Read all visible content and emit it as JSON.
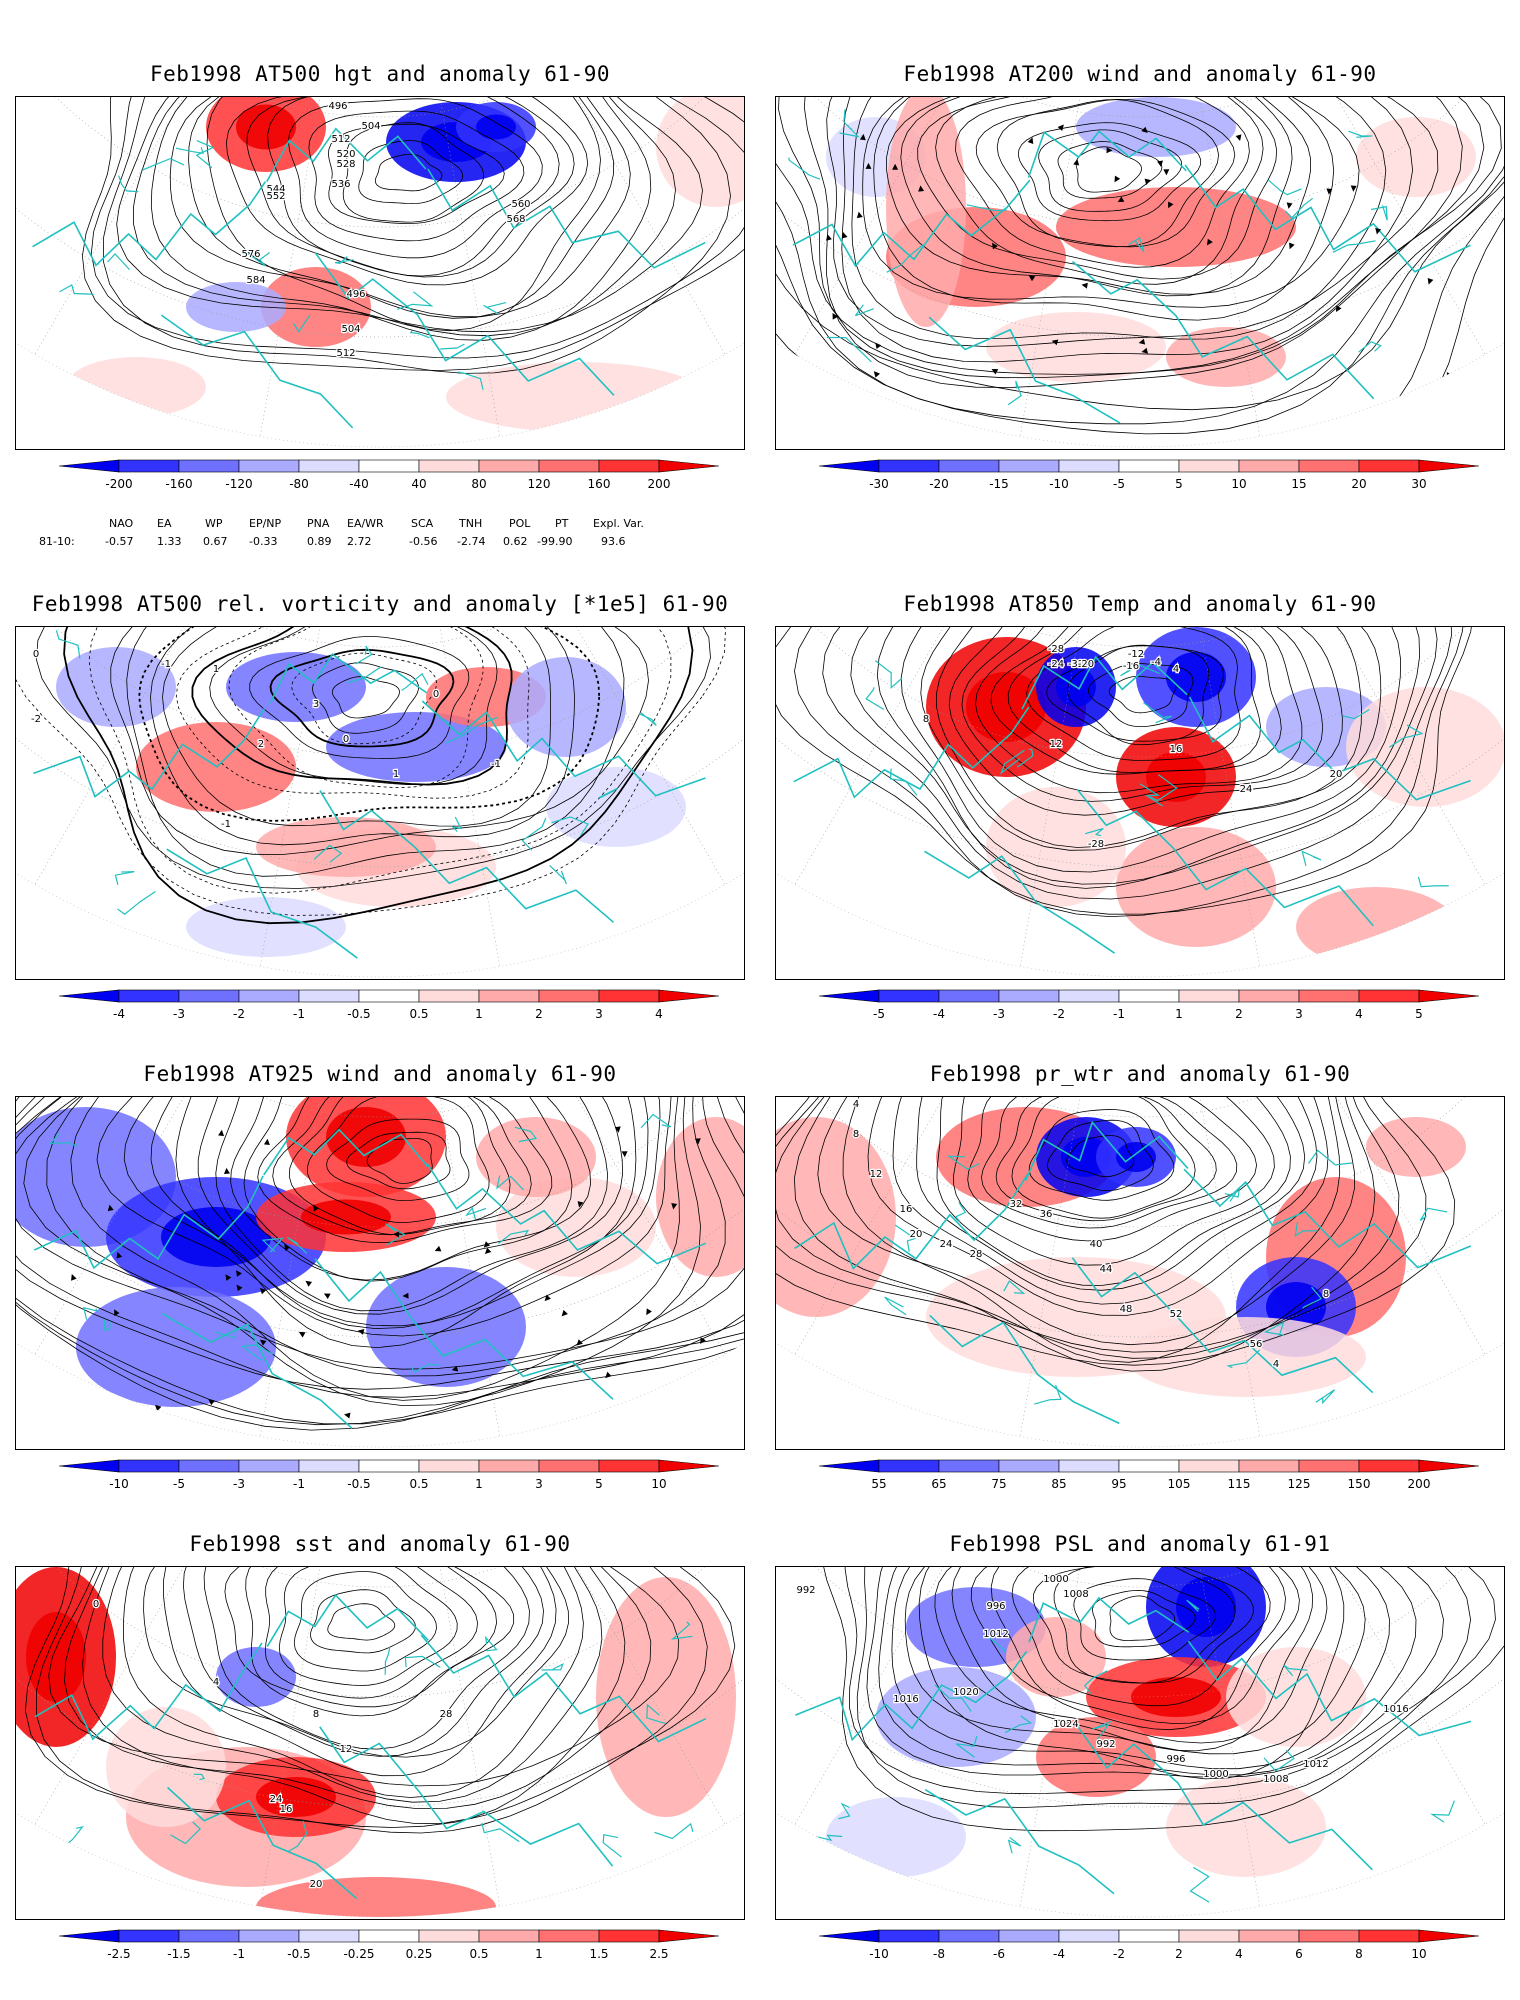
{
  "panels": [
    {
      "id": "hgt500",
      "title": "Feb1998 AT500 hgt and anomaly 61-90",
      "colorbar": [
        "-200",
        "-160",
        "-120",
        "-80",
        "-40",
        "40",
        "80",
        "120",
        "160",
        "200"
      ],
      "contour_labels": [
        "496",
        "504",
        "512",
        "520",
        "528",
        "536",
        "544",
        "552",
        "560",
        "568",
        "576",
        "584"
      ]
    },
    {
      "id": "wind200",
      "title": "Feb1998 AT200 wind and anomaly 61-90",
      "colorbar": [
        "-30",
        "-20",
        "-15",
        "-10",
        "-5",
        "5",
        "10",
        "15",
        "20",
        "30"
      ],
      "contour_labels": []
    },
    {
      "id": "vort500",
      "title": "Feb1998 AT500 rel. vorticity and anomaly [*1e5] 61-90",
      "colorbar": [
        "-4",
        "-3",
        "-2",
        "-1",
        "-0.5",
        "0.5",
        "1",
        "2",
        "3",
        "4"
      ],
      "contour_labels": [
        "0",
        "-1",
        "1",
        "-2",
        "2",
        "3",
        "0",
        "-1",
        "1"
      ]
    },
    {
      "id": "temp850",
      "title": "Feb1998 AT850 Temp and anomaly 61-90",
      "colorbar": [
        "-5",
        "-4",
        "-3",
        "-2",
        "-1",
        "1",
        "2",
        "3",
        "4",
        "5"
      ],
      "contour_labels": [
        "-28",
        "-24",
        "-32",
        "-20",
        "-16",
        "-12",
        "-4",
        "4",
        "8",
        "12",
        "16",
        "20",
        "24"
      ]
    },
    {
      "id": "wind925",
      "title": "Feb1998 AT925 wind and anomaly 61-90",
      "colorbar": [
        "-10",
        "-5",
        "-3",
        "-1",
        "-0.5",
        "0.5",
        "1",
        "3",
        "5",
        "10"
      ],
      "contour_labels": []
    },
    {
      "id": "prwtr",
      "title": "Feb1998 pr_wtr and anomaly 61-90",
      "colorbar": [
        "55",
        "65",
        "75",
        "85",
        "95",
        "105",
        "115",
        "125",
        "150",
        "200"
      ],
      "contour_labels": [
        "4",
        "8",
        "12",
        "16",
        "20",
        "24",
        "28",
        "32",
        "36",
        "40",
        "44",
        "48",
        "52",
        "56"
      ]
    },
    {
      "id": "sst",
      "title": "Feb1998 sst and anomaly 61-90",
      "colorbar": [
        "-2.5",
        "-1.5",
        "-1",
        "-0.5",
        "-0.25",
        "0.25",
        "0.5",
        "1",
        "1.5",
        "2.5"
      ],
      "contour_labels": [
        "0",
        "4",
        "8",
        "12",
        "16",
        "20",
        "24",
        "28"
      ]
    },
    {
      "id": "psl",
      "title": "Feb1998 PSL and anomaly 61-91",
      "colorbar": [
        "-10",
        "-8",
        "-6",
        "-4",
        "-2",
        "2",
        "4",
        "6",
        "8",
        "10"
      ],
      "contour_labels": [
        "992",
        "996",
        "1000",
        "1008",
        "1012",
        "1016",
        "1020",
        "1024"
      ]
    }
  ],
  "indices": {
    "headers": [
      "NAO",
      "EA",
      "WP",
      "EP/NP",
      "PNA",
      "EA/WR",
      "SCA",
      "TNH",
      "POL",
      "PT",
      "Expl. Var."
    ],
    "row_label": "81-10:",
    "values": [
      "-0.57",
      "1.33",
      "0.67",
      "-0.33",
      "0.89",
      "2.72",
      "-0.56",
      "-2.74",
      "0.62",
      "-99.90",
      "93.6"
    ]
  },
  "colors": {
    "blue_levels": [
      "#0000f0",
      "#3333ff",
      "#7070ff",
      "#aaaaff",
      "#dcdcff"
    ],
    "red_levels": [
      "#ffdcdc",
      "#ffaaaa",
      "#ff7070",
      "#ff3333",
      "#f00000"
    ],
    "contour": "#000000",
    "coast": "#20c0c0"
  }
}
